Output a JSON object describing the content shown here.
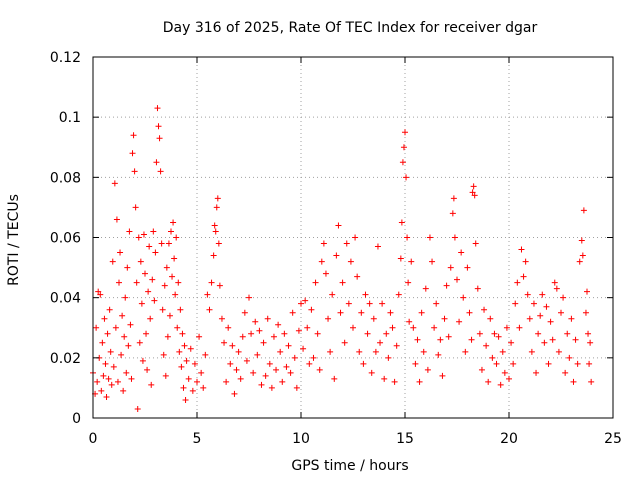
{
  "chart_data": {
    "type": "scatter",
    "title": "Day 316 of 2025, Rate Of TEC Index for receiver dgar",
    "xlabel": "GPS time / hours",
    "ylabel": "ROTI / TECUs",
    "xlim": [
      0,
      25
    ],
    "ylim": [
      0,
      0.12
    ],
    "xticks": [
      0,
      5,
      10,
      15,
      20,
      25
    ],
    "xtick_labels": [
      "0",
      "5",
      "10",
      "15",
      "20",
      "25"
    ],
    "yticks": [
      0,
      0.02,
      0.04,
      0.06,
      0.08,
      0.1,
      0.12
    ],
    "ytick_labels": [
      "0",
      "0.02",
      "0.04",
      "0.06",
      "0.08",
      "0.1",
      "0.12"
    ],
    "grid": true,
    "legend": "none",
    "marker": "+",
    "color": "#ff0000",
    "points": [
      [
        0.0,
        0.015
      ],
      [
        0.1,
        0.008
      ],
      [
        0.15,
        0.03
      ],
      [
        0.2,
        0.012
      ],
      [
        0.25,
        0.042
      ],
      [
        0.3,
        0.02
      ],
      [
        0.35,
        0.041
      ],
      [
        0.4,
        0.009
      ],
      [
        0.45,
        0.025
      ],
      [
        0.5,
        0.014
      ],
      [
        0.55,
        0.033
      ],
      [
        0.6,
        0.018
      ],
      [
        0.65,
        0.007
      ],
      [
        0.7,
        0.028
      ],
      [
        0.75,
        0.013
      ],
      [
        0.8,
        0.036
      ],
      [
        0.85,
        0.022
      ],
      [
        0.9,
        0.011
      ],
      [
        0.95,
        0.052
      ],
      [
        1.0,
        0.017
      ],
      [
        1.05,
        0.078
      ],
      [
        1.1,
        0.03
      ],
      [
        1.15,
        0.066
      ],
      [
        1.2,
        0.012
      ],
      [
        1.25,
        0.045
      ],
      [
        1.3,
        0.055
      ],
      [
        1.35,
        0.021
      ],
      [
        1.4,
        0.034
      ],
      [
        1.45,
        0.009
      ],
      [
        1.5,
        0.027
      ],
      [
        1.55,
        0.04
      ],
      [
        1.6,
        0.015
      ],
      [
        1.65,
        0.05
      ],
      [
        1.7,
        0.024
      ],
      [
        1.75,
        0.062
      ],
      [
        1.8,
        0.031
      ],
      [
        1.85,
        0.013
      ],
      [
        1.9,
        0.088
      ],
      [
        1.95,
        0.094
      ],
      [
        2.0,
        0.082
      ],
      [
        2.05,
        0.07
      ],
      [
        2.1,
        0.045
      ],
      [
        2.15,
        0.003
      ],
      [
        2.2,
        0.06
      ],
      [
        2.25,
        0.025
      ],
      [
        2.3,
        0.052
      ],
      [
        2.35,
        0.038
      ],
      [
        2.4,
        0.019
      ],
      [
        2.45,
        0.061
      ],
      [
        2.5,
        0.048
      ],
      [
        2.55,
        0.028
      ],
      [
        2.6,
        0.016
      ],
      [
        2.65,
        0.042
      ],
      [
        2.7,
        0.057
      ],
      [
        2.75,
        0.033
      ],
      [
        2.8,
        0.011
      ],
      [
        2.85,
        0.046
      ],
      [
        2.9,
        0.062
      ],
      [
        2.95,
        0.039
      ],
      [
        3.0,
        0.055
      ],
      [
        3.05,
        0.085
      ],
      [
        3.1,
        0.103
      ],
      [
        3.15,
        0.097
      ],
      [
        3.2,
        0.093
      ],
      [
        3.25,
        0.082
      ],
      [
        3.3,
        0.058
      ],
      [
        3.35,
        0.036
      ],
      [
        3.4,
        0.021
      ],
      [
        3.45,
        0.044
      ],
      [
        3.5,
        0.014
      ],
      [
        3.55,
        0.05
      ],
      [
        3.6,
        0.027
      ],
      [
        3.65,
        0.058
      ],
      [
        3.7,
        0.034
      ],
      [
        3.75,
        0.062
      ],
      [
        3.8,
        0.047
      ],
      [
        3.85,
        0.065
      ],
      [
        3.9,
        0.053
      ],
      [
        3.95,
        0.041
      ],
      [
        4.0,
        0.06
      ],
      [
        4.05,
        0.03
      ],
      [
        4.1,
        0.045
      ],
      [
        4.15,
        0.022
      ],
      [
        4.2,
        0.036
      ],
      [
        4.25,
        0.017
      ],
      [
        4.3,
        0.028
      ],
      [
        4.35,
        0.01
      ],
      [
        4.4,
        0.024
      ],
      [
        4.45,
        0.006
      ],
      [
        4.5,
        0.019
      ],
      [
        4.6,
        0.013
      ],
      [
        4.7,
        0.023
      ],
      [
        4.8,
        0.009
      ],
      [
        4.9,
        0.018
      ],
      [
        5.0,
        0.012
      ],
      [
        5.1,
        0.027
      ],
      [
        5.2,
        0.015
      ],
      [
        5.3,
        0.01
      ],
      [
        5.4,
        0.021
      ],
      [
        5.5,
        0.041
      ],
      [
        5.6,
        0.036
      ],
      [
        5.7,
        0.045
      ],
      [
        5.8,
        0.054
      ],
      [
        5.85,
        0.064
      ],
      [
        5.9,
        0.062
      ],
      [
        5.95,
        0.07
      ],
      [
        6.0,
        0.073
      ],
      [
        6.05,
        0.058
      ],
      [
        6.1,
        0.044
      ],
      [
        6.2,
        0.033
      ],
      [
        6.3,
        0.025
      ],
      [
        6.4,
        0.012
      ],
      [
        6.5,
        0.03
      ],
      [
        6.6,
        0.018
      ],
      [
        6.7,
        0.024
      ],
      [
        6.8,
        0.008
      ],
      [
        6.9,
        0.016
      ],
      [
        7.0,
        0.022
      ],
      [
        7.1,
        0.013
      ],
      [
        7.2,
        0.027
      ],
      [
        7.3,
        0.035
      ],
      [
        7.4,
        0.019
      ],
      [
        7.5,
        0.04
      ],
      [
        7.6,
        0.028
      ],
      [
        7.7,
        0.015
      ],
      [
        7.8,
        0.032
      ],
      [
        7.9,
        0.021
      ],
      [
        8.0,
        0.029
      ],
      [
        8.1,
        0.011
      ],
      [
        8.2,
        0.025
      ],
      [
        8.3,
        0.014
      ],
      [
        8.4,
        0.033
      ],
      [
        8.5,
        0.018
      ],
      [
        8.6,
        0.01
      ],
      [
        8.7,
        0.027
      ],
      [
        8.8,
        0.016
      ],
      [
        8.9,
        0.031
      ],
      [
        9.0,
        0.022
      ],
      [
        9.1,
        0.012
      ],
      [
        9.2,
        0.028
      ],
      [
        9.3,
        0.017
      ],
      [
        9.4,
        0.024
      ],
      [
        9.5,
        0.015
      ],
      [
        9.6,
        0.035
      ],
      [
        9.7,
        0.02
      ],
      [
        9.8,
        0.01
      ],
      [
        9.9,
        0.029
      ],
      [
        10.0,
        0.038
      ],
      [
        10.1,
        0.023
      ],
      [
        10.2,
        0.039
      ],
      [
        10.3,
        0.03
      ],
      [
        10.4,
        0.018
      ],
      [
        10.5,
        0.036
      ],
      [
        10.6,
        0.02
      ],
      [
        10.7,
        0.045
      ],
      [
        10.8,
        0.028
      ],
      [
        10.9,
        0.016
      ],
      [
        11.0,
        0.052
      ],
      [
        11.1,
        0.058
      ],
      [
        11.2,
        0.048
      ],
      [
        11.3,
        0.033
      ],
      [
        11.4,
        0.022
      ],
      [
        11.5,
        0.041
      ],
      [
        11.6,
        0.013
      ],
      [
        11.7,
        0.054
      ],
      [
        11.8,
        0.064
      ],
      [
        11.9,
        0.035
      ],
      [
        12.0,
        0.045
      ],
      [
        12.1,
        0.025
      ],
      [
        12.2,
        0.058
      ],
      [
        12.3,
        0.038
      ],
      [
        12.4,
        0.052
      ],
      [
        12.5,
        0.03
      ],
      [
        12.6,
        0.06
      ],
      [
        12.7,
        0.047
      ],
      [
        12.8,
        0.022
      ],
      [
        12.9,
        0.035
      ],
      [
        13.0,
        0.018
      ],
      [
        13.1,
        0.041
      ],
      [
        13.2,
        0.028
      ],
      [
        13.3,
        0.038
      ],
      [
        13.4,
        0.015
      ],
      [
        13.5,
        0.033
      ],
      [
        13.6,
        0.022
      ],
      [
        13.7,
        0.057
      ],
      [
        13.8,
        0.025
      ],
      [
        13.9,
        0.038
      ],
      [
        14.0,
        0.013
      ],
      [
        14.1,
        0.028
      ],
      [
        14.2,
        0.02
      ],
      [
        14.3,
        0.035
      ],
      [
        14.4,
        0.03
      ],
      [
        14.5,
        0.012
      ],
      [
        14.6,
        0.024
      ],
      [
        14.7,
        0.041
      ],
      [
        14.8,
        0.053
      ],
      [
        14.85,
        0.065
      ],
      [
        14.9,
        0.085
      ],
      [
        14.95,
        0.09
      ],
      [
        15.0,
        0.095
      ],
      [
        15.05,
        0.08
      ],
      [
        15.1,
        0.06
      ],
      [
        15.15,
        0.045
      ],
      [
        15.2,
        0.032
      ],
      [
        15.3,
        0.052
      ],
      [
        15.4,
        0.03
      ],
      [
        15.5,
        0.018
      ],
      [
        15.6,
        0.026
      ],
      [
        15.7,
        0.012
      ],
      [
        15.8,
        0.035
      ],
      [
        15.9,
        0.022
      ],
      [
        16.0,
        0.043
      ],
      [
        16.1,
        0.016
      ],
      [
        16.2,
        0.06
      ],
      [
        16.3,
        0.052
      ],
      [
        16.4,
        0.03
      ],
      [
        16.5,
        0.038
      ],
      [
        16.6,
        0.021
      ],
      [
        16.7,
        0.026
      ],
      [
        16.8,
        0.014
      ],
      [
        16.9,
        0.033
      ],
      [
        17.0,
        0.044
      ],
      [
        17.1,
        0.027
      ],
      [
        17.2,
        0.05
      ],
      [
        17.3,
        0.068
      ],
      [
        17.35,
        0.073
      ],
      [
        17.4,
        0.06
      ],
      [
        17.5,
        0.046
      ],
      [
        17.6,
        0.032
      ],
      [
        17.7,
        0.055
      ],
      [
        17.8,
        0.04
      ],
      [
        17.9,
        0.022
      ],
      [
        18.0,
        0.05
      ],
      [
        18.1,
        0.035
      ],
      [
        18.2,
        0.026
      ],
      [
        18.25,
        0.075
      ],
      [
        18.3,
        0.077
      ],
      [
        18.35,
        0.074
      ],
      [
        18.4,
        0.058
      ],
      [
        18.5,
        0.043
      ],
      [
        18.6,
        0.028
      ],
      [
        18.7,
        0.016
      ],
      [
        18.8,
        0.036
      ],
      [
        18.9,
        0.024
      ],
      [
        19.0,
        0.012
      ],
      [
        19.1,
        0.033
      ],
      [
        19.2,
        0.02
      ],
      [
        19.3,
        0.028
      ],
      [
        19.4,
        0.018
      ],
      [
        19.5,
        0.027
      ],
      [
        19.6,
        0.011
      ],
      [
        19.7,
        0.022
      ],
      [
        19.8,
        0.015
      ],
      [
        19.9,
        0.03
      ],
      [
        20.0,
        0.013
      ],
      [
        20.1,
        0.025
      ],
      [
        20.2,
        0.018
      ],
      [
        20.3,
        0.038
      ],
      [
        20.4,
        0.045
      ],
      [
        20.5,
        0.03
      ],
      [
        20.6,
        0.056
      ],
      [
        20.7,
        0.047
      ],
      [
        20.8,
        0.052
      ],
      [
        20.9,
        0.041
      ],
      [
        21.0,
        0.033
      ],
      [
        21.1,
        0.022
      ],
      [
        21.2,
        0.038
      ],
      [
        21.3,
        0.015
      ],
      [
        21.4,
        0.028
      ],
      [
        21.5,
        0.034
      ],
      [
        21.6,
        0.041
      ],
      [
        21.7,
        0.025
      ],
      [
        21.8,
        0.037
      ],
      [
        21.9,
        0.018
      ],
      [
        22.0,
        0.032
      ],
      [
        22.1,
        0.026
      ],
      [
        22.2,
        0.045
      ],
      [
        22.3,
        0.043
      ],
      [
        22.4,
        0.022
      ],
      [
        22.5,
        0.035
      ],
      [
        22.6,
        0.04
      ],
      [
        22.7,
        0.015
      ],
      [
        22.8,
        0.028
      ],
      [
        22.9,
        0.02
      ],
      [
        23.0,
        0.033
      ],
      [
        23.1,
        0.012
      ],
      [
        23.2,
        0.026
      ],
      [
        23.3,
        0.018
      ],
      [
        23.4,
        0.052
      ],
      [
        23.5,
        0.059
      ],
      [
        23.55,
        0.054
      ],
      [
        23.6,
        0.069
      ],
      [
        23.7,
        0.035
      ],
      [
        23.75,
        0.042
      ],
      [
        23.8,
        0.028
      ],
      [
        23.85,
        0.018
      ],
      [
        23.9,
        0.025
      ],
      [
        23.95,
        0.012
      ]
    ]
  }
}
